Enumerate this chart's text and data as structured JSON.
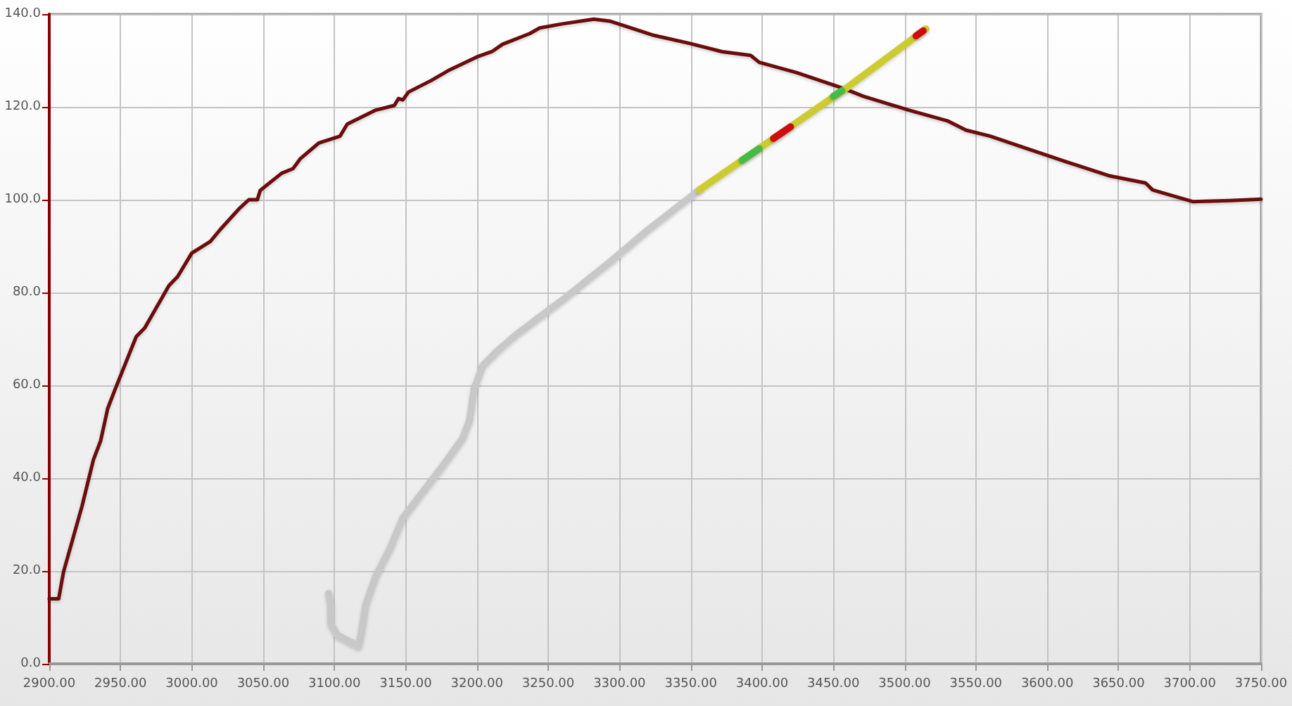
{
  "chart_data": {
    "type": "line",
    "xlim": [
      2900,
      3750
    ],
    "ylim": [
      0,
      140
    ],
    "xticks": [
      {
        "value": 2900,
        "label": "2900.00"
      },
      {
        "value": 2950,
        "label": "2950.00"
      },
      {
        "value": 3000,
        "label": "3000.00"
      },
      {
        "value": 3050,
        "label": "3050.00"
      },
      {
        "value": 3100,
        "label": "3100.00"
      },
      {
        "value": 3150,
        "label": "3150.00"
      },
      {
        "value": 3200,
        "label": "3200.00"
      },
      {
        "value": 3250,
        "label": "3250.00"
      },
      {
        "value": 3300,
        "label": "3300.00"
      },
      {
        "value": 3350,
        "label": "3350.00"
      },
      {
        "value": 3400,
        "label": "3400.00"
      },
      {
        "value": 3450,
        "label": "3450.00"
      },
      {
        "value": 3500,
        "label": "3500.00"
      },
      {
        "value": 3550,
        "label": "3550.00"
      },
      {
        "value": 3600,
        "label": "3600.00"
      },
      {
        "value": 3650,
        "label": "3650.00"
      },
      {
        "value": 3700,
        "label": "3700.00"
      },
      {
        "value": 3750,
        "label": "3750.00"
      }
    ],
    "yticks": [
      {
        "value": 0,
        "label": "0.0"
      },
      {
        "value": 20,
        "label": "20.0"
      },
      {
        "value": 40,
        "label": "40.0"
      },
      {
        "value": 60,
        "label": "60.0"
      },
      {
        "value": 80,
        "label": "80.0"
      },
      {
        "value": 100,
        "label": "100.0"
      },
      {
        "value": 120,
        "label": "120.0"
      },
      {
        "value": 140,
        "label": "140.0"
      }
    ],
    "grid": true,
    "marker": "none",
    "line_style": "solid",
    "series": [
      {
        "color": "#6b0a0a",
        "x": [
          2900,
          2906.6,
          2910,
          2923,
          2931,
          2936,
          2941,
          2946,
          2961,
          2967,
          2984,
          2990,
          3000,
          3013,
          3020,
          3033,
          3040,
          3046,
          3048,
          3063,
          3071,
          3076,
          3089,
          3104,
          3109,
          3119,
          3129,
          3142,
          3145,
          3148,
          3152,
          3168,
          3181,
          3201,
          3211,
          3218,
          3237,
          3244,
          3260,
          3282,
          3293,
          3306,
          3323,
          3349,
          3372,
          3392,
          3398,
          3424,
          3457,
          3471,
          3503,
          3530,
          3543,
          3560,
          3587,
          3613,
          3643,
          3669,
          3674,
          3702,
          3728,
          3750
        ],
        "values": [
          14,
          14,
          19.8,
          34,
          44,
          48,
          55,
          59,
          70.5,
          72.4,
          81.5,
          83.4,
          88.5,
          91,
          93.6,
          98,
          100,
          100,
          102,
          105.7,
          106.7,
          108.8,
          112.2,
          113.7,
          116.3,
          117.8,
          119.3,
          120.3,
          121.8,
          121.5,
          123.2,
          125.7,
          128,
          130.9,
          132,
          133.5,
          135.8,
          137,
          137.9,
          138.9,
          138.5,
          137.2,
          135.5,
          133.7,
          131.9,
          131.1,
          129.6,
          127.4,
          124,
          122.3,
          119.3,
          117,
          115,
          113.7,
          110.9,
          108.2,
          105.2,
          103.6,
          102.1,
          99.6,
          99.8,
          100.1
        ]
      },
      {
        "color": "#c8c8c8",
        "x": [
          3096,
          3097.5,
          3097.5,
          3102,
          3117,
          3119,
          3122,
          3129,
          3139,
          3148,
          3162,
          3178,
          3190,
          3195,
          3198,
          3204,
          3214,
          3227,
          3260,
          3293,
          3320,
          3356
        ],
        "values": [
          15.2,
          12.7,
          8.7,
          6.2,
          3.8,
          6.7,
          12.7,
          18.8,
          24.8,
          31.4,
          37,
          43.5,
          48.6,
          52.6,
          59.2,
          64.2,
          67.3,
          70.8,
          78.4,
          86.5,
          93.5,
          102.1
        ]
      },
      {
        "color": "#cccc33",
        "x": [
          3356,
          3458,
          3515
        ],
        "values": [
          102.1,
          123.8,
          136.8
        ]
      },
      {
        "color": "#44bb44",
        "x": [
          3386,
          3398
        ],
        "values": [
          108.5,
          111
        ]
      },
      {
        "color": "#cc1111",
        "x": [
          3408,
          3420
        ],
        "values": [
          113.2,
          115.7
        ]
      },
      {
        "color": "#44bb44",
        "x": [
          3450,
          3456
        ],
        "values": [
          122.3,
          123.5
        ]
      },
      {
        "color": "#cc1111",
        "x": [
          3508,
          3513
        ],
        "values": [
          135.3,
          136.4
        ]
      }
    ]
  }
}
